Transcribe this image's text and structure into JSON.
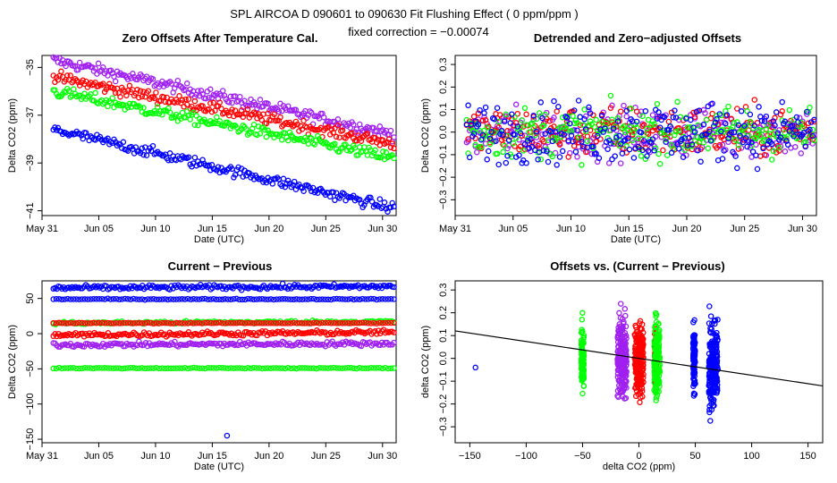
{
  "header": {
    "title": "SPL   AIRCOA D   090601 to 090630   Fit Flushing Effect ( 0 ppm/ppm )",
    "subtitle": "fixed correction = −0.00074"
  },
  "colors": {
    "purple": "#a020f0",
    "red": "#ff0000",
    "green": "#00ff00",
    "blue": "#0000ff",
    "axis": "#000000"
  },
  "chart_data": [
    {
      "id": "zero-offsets",
      "type": "scatter",
      "title": "Zero Offsets After Temperature Cal.",
      "xlabel": "Date (UTC)",
      "ylabel": "Delta CO2 (ppm)",
      "xlim": [
        0,
        31.2
      ],
      "ylim": [
        -41.2,
        -34.5
      ],
      "xticks": [
        0,
        5,
        10,
        15,
        20,
        25,
        30
      ],
      "xtick_labels": [
        "May 31",
        "Jun 05",
        "Jun 10",
        "Jun 15",
        "Jun 20",
        "Jun 25",
        "Jun 30"
      ],
      "yticks": [
        -41,
        -39,
        -37,
        -35
      ],
      "ytick_labels": [
        "−41",
        "−39",
        "−37",
        "−35"
      ],
      "series": [
        {
          "name": "purple",
          "color": "purple",
          "x": [
            1,
            31
          ],
          "y": [
            -34.7,
            -37.8
          ],
          "noise": 0.22,
          "n": 220
        },
        {
          "name": "red",
          "color": "red",
          "x": [
            1,
            31
          ],
          "y": [
            -35.4,
            -38.2
          ],
          "noise": 0.22,
          "n": 220
        },
        {
          "name": "green",
          "color": "green",
          "x": [
            1,
            31
          ],
          "y": [
            -36.0,
            -38.8
          ],
          "noise": 0.22,
          "n": 220
        },
        {
          "name": "blue",
          "color": "blue",
          "x": [
            1,
            31
          ],
          "y": [
            -37.6,
            -40.9
          ],
          "noise": 0.2,
          "n": 220
        }
      ]
    },
    {
      "id": "detrended",
      "type": "scatter",
      "title": "Detrended and Zero−adjusted Offsets",
      "xlabel": "Date (UTC)",
      "ylabel": "Delta CO2 (ppm)",
      "xlim": [
        0,
        31.2
      ],
      "ylim": [
        -0.37,
        0.34
      ],
      "xticks": [
        0,
        5,
        10,
        15,
        20,
        25,
        30
      ],
      "xtick_labels": [
        "May 31",
        "Jun 05",
        "Jun 10",
        "Jun 15",
        "Jun 20",
        "Jun 25",
        "Jun 30"
      ],
      "yticks": [
        -0.3,
        -0.1,
        0.1,
        0.3
      ],
      "ytick_labels": [
        "−0.3",
        "−0.1",
        "0.1",
        "0.3"
      ],
      "yticks_unlabeled": [
        -0.2,
        0.0,
        0.2
      ],
      "ytick_labels_mid": [
        "−0.2",
        "0.0",
        "0.2"
      ],
      "series": [
        {
          "name": "purple",
          "color": "purple",
          "x": [
            1,
            31
          ],
          "y": [
            0.0,
            0.0
          ],
          "noise": 0.1,
          "n": 240
        },
        {
          "name": "red",
          "color": "red",
          "x": [
            1,
            31
          ],
          "y": [
            0.0,
            0.0
          ],
          "noise": 0.1,
          "n": 240
        },
        {
          "name": "green",
          "color": "green",
          "x": [
            1,
            31
          ],
          "y": [
            0.0,
            0.0
          ],
          "noise": 0.1,
          "n": 240
        },
        {
          "name": "blue",
          "color": "blue",
          "x": [
            1,
            31
          ],
          "y": [
            0.0,
            0.0
          ],
          "noise": 0.12,
          "n": 240
        }
      ]
    },
    {
      "id": "current-previous",
      "type": "scatter",
      "title": "Current − Previous",
      "xlabel": "Date (UTC)",
      "ylabel": "Delta CO2 (ppm)",
      "xlim": [
        0,
        31.2
      ],
      "ylim": [
        -155,
        75
      ],
      "xticks": [
        0,
        5,
        10,
        15,
        20,
        25,
        30
      ],
      "xtick_labels": [
        "May 31",
        "Jun 05",
        "Jun 10",
        "Jun 15",
        "Jun 20",
        "Jun 25",
        "Jun 30"
      ],
      "yticks": [
        -150,
        -100,
        -50,
        0,
        50
      ],
      "ytick_labels": [
        "−150",
        "−100",
        "−50",
        "0",
        "50"
      ],
      "series": [
        {
          "name": "blue-high",
          "color": "blue",
          "x": [
            1,
            31
          ],
          "y": [
            65,
            67
          ],
          "noise": 3,
          "n": 200
        },
        {
          "name": "blue-50",
          "color": "blue",
          "x": [
            1,
            31
          ],
          "y": [
            49,
            49
          ],
          "noise": 0.6,
          "n": 120
        },
        {
          "name": "green-15",
          "color": "green",
          "x": [
            1,
            31
          ],
          "y": [
            15,
            17
          ],
          "noise": 2,
          "n": 160
        },
        {
          "name": "red-15",
          "color": "red",
          "x": [
            1,
            31
          ],
          "y": [
            15,
            15
          ],
          "noise": 0.5,
          "n": 120
        },
        {
          "name": "red-0",
          "color": "red",
          "x": [
            1,
            31
          ],
          "y": [
            -2,
            2
          ],
          "noise": 3,
          "n": 200
        },
        {
          "name": "purple-neg",
          "color": "purple",
          "x": [
            1,
            31
          ],
          "y": [
            -16,
            -14
          ],
          "noise": 3,
          "n": 200
        },
        {
          "name": "green-50",
          "color": "green",
          "x": [
            1,
            31
          ],
          "y": [
            -49,
            -49
          ],
          "noise": 0.6,
          "n": 120
        }
      ],
      "points": [
        {
          "color": "blue",
          "x": 16.3,
          "y": -145
        }
      ]
    },
    {
      "id": "offsets-vs",
      "type": "scatter",
      "title": "Offsets vs. (Current − Previous)",
      "xlabel": "delta CO2 (ppm)",
      "ylabel": "delta CO2 (ppm)",
      "xlim": [
        -163,
        163
      ],
      "ylim": [
        -0.37,
        0.34
      ],
      "xticks": [
        -150,
        -100,
        -50,
        0,
        50,
        100,
        150
      ],
      "xtick_labels": [
        "−150",
        "−100",
        "−50",
        "0",
        "50",
        "100",
        "150"
      ],
      "yticks": [
        -0.3,
        -0.1,
        0.1,
        0.3
      ],
      "ytick_labels": [
        "−0.3",
        "−0.1",
        "0.1",
        "0.3"
      ],
      "yticks_unlabeled": [
        -0.2,
        0.0,
        0.2
      ],
      "ytick_labels_mid": [
        "−0.2",
        "0.0",
        "0.2"
      ],
      "clusters": [
        {
          "color": "green",
          "x": -50,
          "spread": 1.2,
          "y_center": 0.0,
          "noise": 0.1,
          "n": 90
        },
        {
          "color": "purple",
          "x": -15,
          "spread": 4,
          "y_center": 0.0,
          "noise": 0.1,
          "n": 220
        },
        {
          "color": "red",
          "x": 0,
          "spread": 4,
          "y_center": 0.0,
          "noise": 0.09,
          "n": 220
        },
        {
          "color": "red",
          "x": 15,
          "spread": 1,
          "y_center": 0.0,
          "noise": 0.08,
          "n": 100
        },
        {
          "color": "green",
          "x": 16,
          "spread": 2.5,
          "y_center": 0.0,
          "noise": 0.1,
          "n": 150
        },
        {
          "color": "blue",
          "x": 49,
          "spread": 1,
          "y_center": 0.0,
          "noise": 0.1,
          "n": 100
        },
        {
          "color": "blue",
          "x": 66,
          "spread": 4,
          "y_center": -0.03,
          "noise": 0.11,
          "n": 220
        }
      ],
      "points": [
        {
          "color": "blue",
          "x": -145,
          "y": -0.04
        }
      ],
      "fit_line": {
        "slope": -0.00074,
        "intercept": 0.0
      }
    }
  ]
}
